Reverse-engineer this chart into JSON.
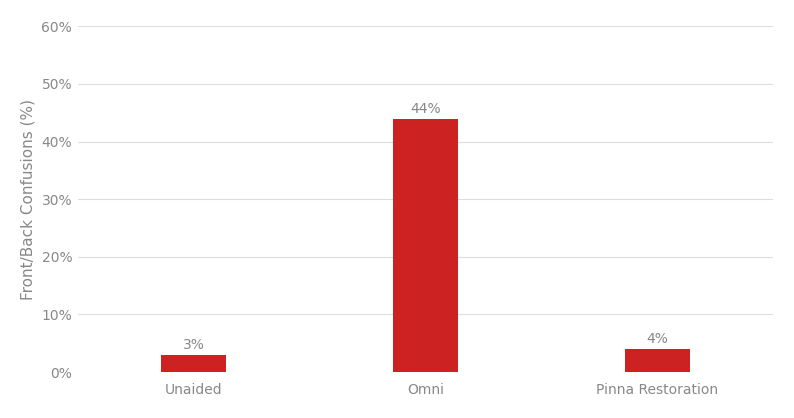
{
  "categories": [
    "Unaided",
    "Omni",
    "Pinna Restoration"
  ],
  "values": [
    3,
    44,
    4
  ],
  "labels": [
    "3%",
    "44%",
    "4%"
  ],
  "bar_color": "#cc2222",
  "ylabel": "Front/Back Confusions (%)",
  "ylim": [
    0,
    60
  ],
  "yticks": [
    0,
    10,
    20,
    30,
    40,
    50,
    60
  ],
  "ytick_labels": [
    "0%",
    "10%",
    "20%",
    "30%",
    "40%",
    "50%",
    "60%"
  ],
  "background_color": "#ffffff",
  "grid_color": "#dddddd",
  "tick_label_color": "#888888",
  "ylabel_color": "#888888",
  "bar_width": 0.28,
  "label_fontsize": 10,
  "ylabel_fontsize": 11,
  "tick_fontsize": 10,
  "x_positions": [
    0,
    1,
    2
  ],
  "xlim": [
    -0.5,
    2.5
  ]
}
